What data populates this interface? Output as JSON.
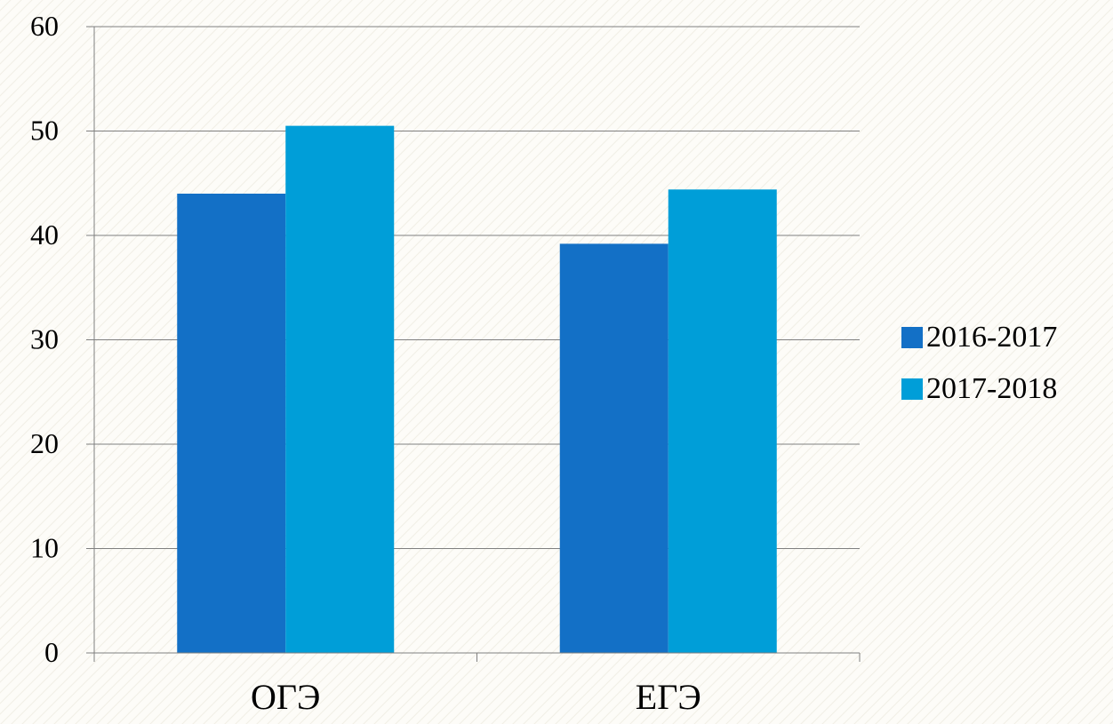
{
  "chart_data": {
    "type": "bar",
    "categories": [
      "ОГЭ",
      "ЕГЭ"
    ],
    "series": [
      {
        "name": "2016-2017",
        "values": [
          44,
          39.2
        ],
        "color": "#1370c6"
      },
      {
        "name": "2017-2018",
        "values": [
          50.5,
          44.4
        ],
        "color": "#009ed8"
      }
    ],
    "ylim": [
      0,
      60
    ],
    "yticks": [
      0,
      10,
      20,
      30,
      40,
      50,
      60
    ],
    "grid": true,
    "legend_position": "right"
  }
}
